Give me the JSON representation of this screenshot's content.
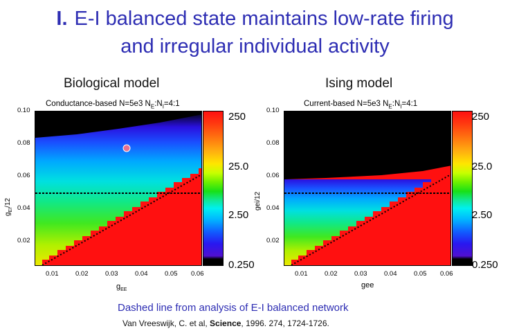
{
  "slide": {
    "title_number": "I.",
    "title_line1": "E-I balanced state maintains low-rate firing",
    "title_line2": "and irregular individual activity",
    "footer_note": "Dashed line from analysis of E-I balanced network",
    "citation_prefix": "Van Vreeswijk, C.  et al, ",
    "citation_journal": "Science",
    "citation_suffix": ", 1996. 274, 1724-1726."
  },
  "colors": {
    "title": "#2d2db3",
    "high": "#ff1010",
    "low": "#000000"
  },
  "chart_data": [
    {
      "type": "heatmap",
      "title": "Biological model",
      "subtitle": "Conductance-based   N=5e3   N",
      "subtitle_sub1": "E",
      "subtitle_mid": ":N",
      "subtitle_sub2": "I",
      "subtitle_end": "=4:1",
      "xlabel": "g",
      "xlabel_sub": "EE",
      "ylabel": "g",
      "ylabel_sub": "EI",
      "ylabel_suffix": "/12",
      "xlim": [
        0.004,
        0.06
      ],
      "ylim": [
        0.005,
        0.1
      ],
      "xticks": [
        "0.01",
        "0.02",
        "0.03",
        "0.04",
        "0.05",
        "0.06"
      ],
      "yticks": [
        "0.02",
        "0.04",
        "0.06",
        "0.08",
        "0.10"
      ],
      "colorbar_labels": [
        "250",
        "25.0",
        "2.50",
        "0.250"
      ],
      "colorbar_scale": "log",
      "dashed_line_y": 0.05
    },
    {
      "type": "heatmap",
      "title": "Ising model",
      "subtitle": "Current-based   N=5e3   N",
      "subtitle_sub1": "E",
      "subtitle_mid": ":N",
      "subtitle_sub2": "I",
      "subtitle_end": "=4:1",
      "xlabel": "gee",
      "ylabel": "gei/12",
      "xlim": [
        0.004,
        0.06
      ],
      "ylim": [
        0.005,
        0.1
      ],
      "xticks": [
        "0.01",
        "0.02",
        "0.03",
        "0.04",
        "0.05",
        "0.06"
      ],
      "yticks": [
        "0.02",
        "0.04",
        "0.06",
        "0.08",
        "0.10"
      ],
      "colorbar_labels": [
        "250",
        "25.0",
        "2.50",
        "0.250"
      ],
      "colorbar_scale": "log",
      "dashed_line_y": 0.05
    }
  ]
}
